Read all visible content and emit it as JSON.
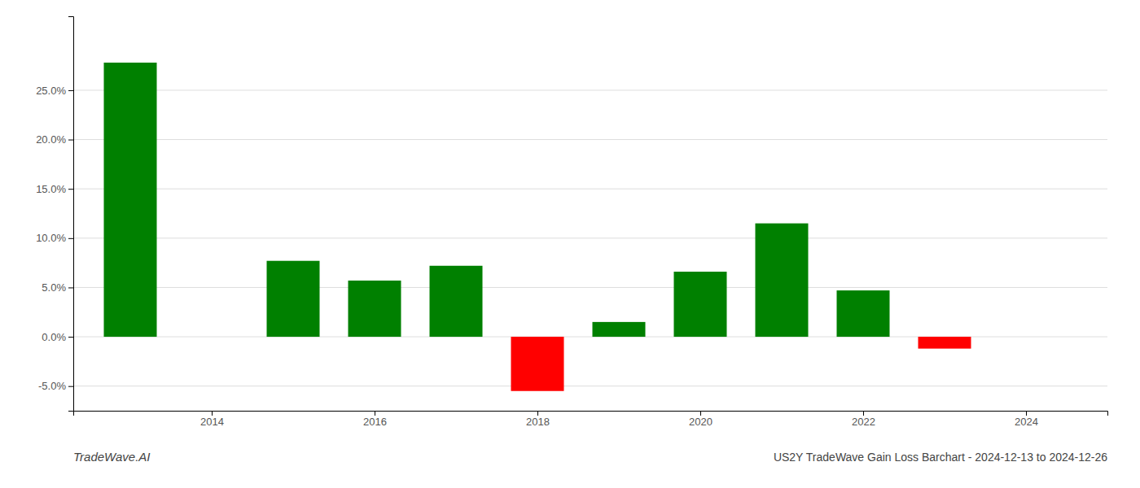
{
  "chart_data": {
    "type": "bar",
    "title": "US2Y TradeWave Gain Loss Barchart - 2024-12-13 to 2024-12-26",
    "annotations": [
      "TradeWave.AI"
    ],
    "x": [
      2013,
      2015,
      2016,
      2017,
      2018,
      2019,
      2020,
      2021,
      2022,
      2023
    ],
    "values": [
      0.278,
      0.077,
      0.057,
      0.072,
      -0.055,
      0.015,
      0.066,
      0.115,
      0.047,
      -0.012
    ],
    "colors": [
      "#008000",
      "#008000",
      "#008000",
      "#008000",
      "#ff0000",
      "#008000",
      "#008000",
      "#008000",
      "#008000",
      "#ff0000"
    ],
    "xlim": [
      2012.3,
      2025.0
    ],
    "xticks": [
      2014,
      2016,
      2018,
      2020,
      2022,
      2024
    ],
    "ylim": [
      -0.075,
      0.325
    ],
    "yticks": [
      {
        "value": -0.05,
        "label": "-5.0%"
      },
      {
        "value": 0.0,
        "label": "0.0%"
      },
      {
        "value": 0.05,
        "label": "5.0%"
      },
      {
        "value": 0.1,
        "label": "10.0%"
      },
      {
        "value": 0.15,
        "label": "15.0%"
      },
      {
        "value": 0.2,
        "label": "20.0%"
      },
      {
        "value": 0.25,
        "label": "25.0%"
      }
    ],
    "grid": true
  }
}
